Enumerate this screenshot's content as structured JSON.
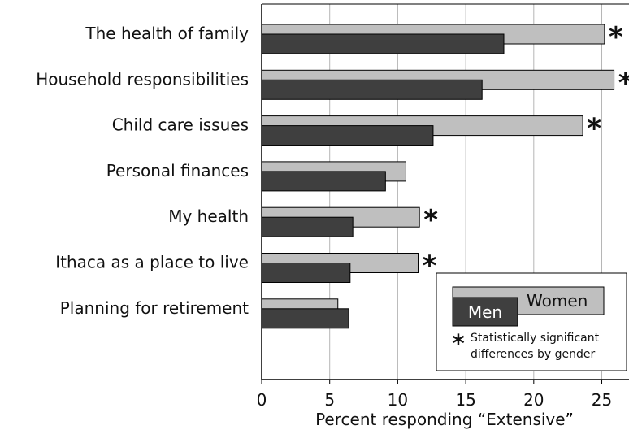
{
  "chart_data": {
    "type": "bar",
    "orientation": "horizontal",
    "categories": [
      "The health of family",
      "Household responsibilities",
      "Child care issues",
      "Personal finances",
      "My health",
      "Ithaca as a place to live",
      "Planning for retirement"
    ],
    "series": [
      {
        "name": "Women",
        "color": "#bfbfbf",
        "values": [
          25.2,
          25.9,
          23.6,
          10.6,
          11.6,
          11.5,
          5.6
        ]
      },
      {
        "name": "Men",
        "color": "#3f3f3f",
        "values": [
          17.8,
          16.2,
          12.6,
          9.1,
          6.7,
          6.5,
          6.4
        ]
      }
    ],
    "significant": [
      true,
      true,
      true,
      false,
      true,
      true,
      false
    ],
    "significance_marker": "*",
    "xlabel": "Percent responding “Extensive”",
    "xlim": [
      0,
      27
    ],
    "xticks": [
      0,
      5,
      10,
      15,
      20,
      25
    ],
    "grid": true,
    "legend": {
      "position": "bottom-right",
      "women_label": "Women",
      "men_label": "Men",
      "note_marker": "*",
      "note_line1": "Statistically significant",
      "note_line2": "differences by gender"
    }
  }
}
